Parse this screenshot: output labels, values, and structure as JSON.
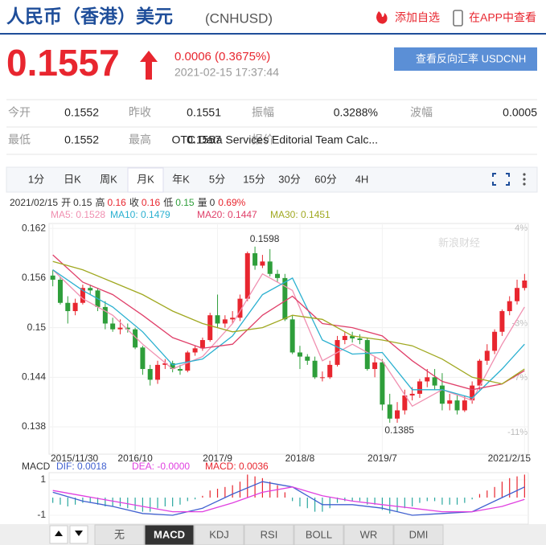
{
  "header": {
    "title": "人民币（香港）美元",
    "code": "(CNHUSD)",
    "add": "添加自选",
    "app": "在APP中查看"
  },
  "quote": {
    "price": "0.1557",
    "change": "0.0006 (0.3675%)",
    "time": "2021-02-15 17:37:44",
    "button": "查看反向汇率 USDCNH"
  },
  "stats": [
    [
      "今开",
      "0.1552",
      "昨收",
      "0.1551",
      "振幅",
      "0.3288%",
      "波幅",
      "0.0005"
    ],
    [
      "最低",
      "0.1552",
      "最高",
      "0.1557",
      "报价",
      "OTC Data Services Editorial Team Calc..."
    ]
  ],
  "tabs": [
    "1分",
    "日K",
    "周K",
    "月K",
    "年K",
    "5分",
    "15分",
    "30分",
    "60分",
    "4H"
  ],
  "active_tab": 3,
  "info": [
    {
      "text": "2021/02/15",
      "color": "#333"
    },
    {
      "text": "开",
      "color": "#333"
    },
    {
      "text": "0.15",
      "color": "#333"
    },
    {
      "text": "高",
      "color": "#333"
    },
    {
      "text": "0.16",
      "color": "#e8262f"
    },
    {
      "text": "收",
      "color": "#333"
    },
    {
      "text": "0.16",
      "color": "#e8262f"
    },
    {
      "text": "低",
      "color": "#333"
    },
    {
      "text": "0.15",
      "color": "#2e9e3a"
    },
    {
      "text": "量",
      "color": "#333"
    },
    {
      "text": "0",
      "color": "#333"
    },
    {
      "text": "0.69%",
      "color": "#e8262f"
    }
  ],
  "watermark": "新浪财经",
  "indicators": [
    "无",
    "MACD",
    "KDJ",
    "RSI",
    "BOLL",
    "WR",
    "DMI"
  ],
  "active_indicator": 1,
  "chart_data": [
    {
      "type": "candlestick",
      "up_color": "#e8262f",
      "down_color": "#2e9e3a",
      "xlim": [
        -0.5,
        63.5
      ],
      "ylim": [
        0.1347,
        0.1626
      ],
      "yticks": [
        0.162,
        0.156,
        0.15,
        0.144,
        0.138
      ],
      "y2lim": [
        -12.6,
        4.35
      ],
      "y2ticks": [
        {
          "value": 4,
          "label": "4%"
        },
        {
          "value": -3,
          "label": "-3%"
        },
        {
          "value": -7,
          "label": "-7%"
        },
        {
          "value": -11,
          "label": "-11%"
        }
      ],
      "xticks": [
        {
          "value": 0,
          "label": "2015/11/30"
        },
        {
          "value": 11,
          "label": "2016/10"
        },
        {
          "value": 22,
          "label": "2017/9"
        },
        {
          "value": 33,
          "label": "2018/8"
        },
        {
          "value": 44,
          "label": "2019/7"
        },
        {
          "value": 63,
          "label": "2021/2/15"
        }
      ],
      "open": [
        0.1563,
        0.1558,
        0.153,
        0.152,
        0.153,
        0.1548,
        0.1545,
        0.1525,
        0.1505,
        0.1498,
        0.15,
        0.1498,
        0.1476,
        0.145,
        0.1437,
        0.1455,
        0.1457,
        0.145,
        0.1448,
        0.147,
        0.1475,
        0.1485,
        0.1515,
        0.1505,
        0.151,
        0.1512,
        0.1535,
        0.159,
        0.1575,
        0.158,
        0.1565,
        0.156,
        0.151,
        0.147,
        0.1465,
        0.146,
        0.144,
        0.144,
        0.1455,
        0.1485,
        0.149,
        0.1487,
        0.1485,
        0.145,
        0.1458,
        0.1407,
        0.139,
        0.14,
        0.1418,
        0.142,
        0.1435,
        0.144,
        0.143,
        0.1408,
        0.1412,
        0.14,
        0.1412,
        0.143,
        0.146,
        0.1472,
        0.1495,
        0.152,
        0.1532,
        0.1548
      ],
      "high": [
        0.157,
        0.1562,
        0.1538,
        0.1535,
        0.1552,
        0.1552,
        0.1548,
        0.1532,
        0.1512,
        0.151,
        0.1505,
        0.15,
        0.1478,
        0.1455,
        0.146,
        0.1462,
        0.146,
        0.1455,
        0.1472,
        0.1478,
        0.1488,
        0.1518,
        0.154,
        0.1515,
        0.152,
        0.154,
        0.1592,
        0.1598,
        0.1588,
        0.1595,
        0.157,
        0.1565,
        0.1515,
        0.1478,
        0.1468,
        0.1465,
        0.1447,
        0.146,
        0.149,
        0.1495,
        0.1495,
        0.1492,
        0.1488,
        0.1465,
        0.1462,
        0.142,
        0.141,
        0.1425,
        0.1428,
        0.1438,
        0.145,
        0.145,
        0.1445,
        0.142,
        0.1418,
        0.1418,
        0.1435,
        0.1462,
        0.148,
        0.1498,
        0.1522,
        0.1538,
        0.1558,
        0.1565
      ],
      "low": [
        0.155,
        0.1528,
        0.1505,
        0.1515,
        0.1528,
        0.154,
        0.152,
        0.1498,
        0.1495,
        0.1492,
        0.1494,
        0.1474,
        0.1443,
        0.143,
        0.1432,
        0.145,
        0.1446,
        0.1443,
        0.1446,
        0.1466,
        0.1472,
        0.1483,
        0.15,
        0.15,
        0.1505,
        0.1508,
        0.1532,
        0.157,
        0.1572,
        0.1562,
        0.1555,
        0.1508,
        0.1468,
        0.145,
        0.1455,
        0.1438,
        0.1435,
        0.1438,
        0.1453,
        0.148,
        0.1482,
        0.148,
        0.1448,
        0.144,
        0.14,
        0.1385,
        0.1385,
        0.1395,
        0.1412,
        0.1415,
        0.1428,
        0.1425,
        0.14,
        0.14,
        0.1395,
        0.1398,
        0.1408,
        0.1425,
        0.1455,
        0.1468,
        0.149,
        0.1515,
        0.1528,
        0.1545
      ],
      "close": [
        0.1558,
        0.153,
        0.152,
        0.153,
        0.1548,
        0.1545,
        0.1525,
        0.1505,
        0.1498,
        0.15,
        0.1498,
        0.1476,
        0.145,
        0.1437,
        0.1455,
        0.1457,
        0.145,
        0.1448,
        0.147,
        0.1475,
        0.1485,
        0.1515,
        0.1505,
        0.151,
        0.1512,
        0.1535,
        0.159,
        0.1575,
        0.158,
        0.1565,
        0.156,
        0.151,
        0.147,
        0.1465,
        0.146,
        0.144,
        0.144,
        0.1455,
        0.1485,
        0.149,
        0.1487,
        0.1485,
        0.145,
        0.1458,
        0.1407,
        0.139,
        0.14,
        0.1418,
        0.142,
        0.1435,
        0.144,
        0.143,
        0.1408,
        0.1412,
        0.14,
        0.1412,
        0.143,
        0.146,
        0.1472,
        0.1495,
        0.152,
        0.1532,
        0.1548,
        0.1557
      ],
      "series": [
        {
          "name": "MA5: 0.1528",
          "color": "#f08fb0",
          "x": [
            0,
            4,
            8,
            12,
            16,
            20,
            24,
            28,
            32,
            36,
            40,
            44,
            48,
            52,
            56,
            60,
            63
          ],
          "values": [
            0.157,
            0.1535,
            0.1515,
            0.148,
            0.145,
            0.1465,
            0.1505,
            0.1565,
            0.1545,
            0.146,
            0.148,
            0.146,
            0.1405,
            0.1425,
            0.1412,
            0.148,
            0.1525
          ]
        },
        {
          "name": "MA10: 0.1479",
          "color": "#2ab0d0",
          "x": [
            0,
            4,
            8,
            12,
            16,
            20,
            24,
            28,
            32,
            36,
            40,
            44,
            48,
            52,
            56,
            60,
            63
          ],
          "values": [
            0.157,
            0.1545,
            0.1525,
            0.1495,
            0.1455,
            0.1462,
            0.149,
            0.154,
            0.156,
            0.1485,
            0.1468,
            0.147,
            0.1425,
            0.1425,
            0.1415,
            0.145,
            0.148
          ]
        },
        {
          "name": "MA20: 0.1447",
          "color": "#e0406a",
          "x": [
            0,
            4,
            8,
            12,
            16,
            20,
            24,
            28,
            32,
            36,
            40,
            44,
            48,
            52,
            56,
            60,
            63
          ],
          "values": [
            0.1588,
            0.1555,
            0.154,
            0.1515,
            0.1488,
            0.1475,
            0.148,
            0.1515,
            0.1538,
            0.1505,
            0.15,
            0.149,
            0.146,
            0.1435,
            0.1425,
            0.1432,
            0.1448
          ]
        },
        {
          "name": "MA30: 0.1451",
          "color": "#a0a820",
          "x": [
            0,
            4,
            8,
            12,
            16,
            20,
            24,
            28,
            32,
            36,
            40,
            44,
            48,
            52,
            56,
            60,
            63
          ],
          "values": [
            0.158,
            0.157,
            0.1555,
            0.154,
            0.152,
            0.1505,
            0.1495,
            0.15,
            0.1515,
            0.151,
            0.149,
            0.1485,
            0.1478,
            0.1462,
            0.144,
            0.1432,
            0.145
          ]
        }
      ],
      "annotations": [
        {
          "label": "0.1598",
          "x": 27,
          "y": 0.1598
        },
        {
          "label": "0.1385",
          "x": 45,
          "y": 0.1385
        }
      ]
    },
    {
      "type": "macd",
      "title": "MACD",
      "xlim": [
        -0.5,
        63.5
      ],
      "ylim": [
        -1.5,
        1.41
      ],
      "yticks": [
        1,
        -1
      ],
      "histogram": {
        "name": "MACD: 0.0036",
        "color": "#e8262f",
        "down_color": "#2aa8a0",
        "values": [
          -0.3,
          -0.4,
          -0.5,
          -0.4,
          -0.3,
          -0.3,
          -0.4,
          -0.5,
          -0.5,
          -0.5,
          -0.6,
          -0.7,
          -0.8,
          -0.8,
          -0.6,
          -0.5,
          -0.5,
          -0.4,
          -0.2,
          -0.1,
          0.1,
          0.4,
          0.5,
          0.6,
          0.7,
          0.9,
          1.3,
          1.2,
          1.1,
          0.9,
          0.7,
          0.3,
          -0.2,
          -0.5,
          -0.6,
          -0.8,
          -0.8,
          -0.6,
          -0.3,
          -0.2,
          -0.2,
          -0.2,
          -0.4,
          -0.4,
          -0.7,
          -0.9,
          -0.8,
          -0.6,
          -0.5,
          -0.3,
          -0.2,
          -0.2,
          -0.4,
          -0.4,
          -0.4,
          -0.3,
          -0.1,
          0.2,
          0.4,
          0.6,
          0.9,
          1.1,
          1.2,
          1.3
        ]
      },
      "series": [
        {
          "name": "DIF: 0.0018",
          "color": "#4060d0",
          "x": [
            0,
            4,
            8,
            12,
            16,
            20,
            24,
            28,
            32,
            36,
            40,
            44,
            48,
            52,
            56,
            60,
            63
          ],
          "values": [
            0.3,
            -0.2,
            -0.5,
            -0.9,
            -1.0,
            -0.6,
            0.2,
            0.9,
            0.6,
            -0.4,
            -0.4,
            -0.6,
            -1.0,
            -0.9,
            -0.8,
            0.0,
            0.6
          ]
        },
        {
          "name": "DEA: -0.0000",
          "color": "#e040e0",
          "x": [
            0,
            4,
            8,
            12,
            16,
            20,
            24,
            28,
            32,
            36,
            40,
            44,
            48,
            52,
            56,
            60,
            63
          ],
          "values": [
            0.4,
            0.1,
            -0.2,
            -0.5,
            -0.8,
            -0.8,
            -0.3,
            0.3,
            0.6,
            0.1,
            -0.2,
            -0.4,
            -0.6,
            -0.8,
            -0.8,
            -0.5,
            -0.1
          ]
        }
      ]
    }
  ]
}
